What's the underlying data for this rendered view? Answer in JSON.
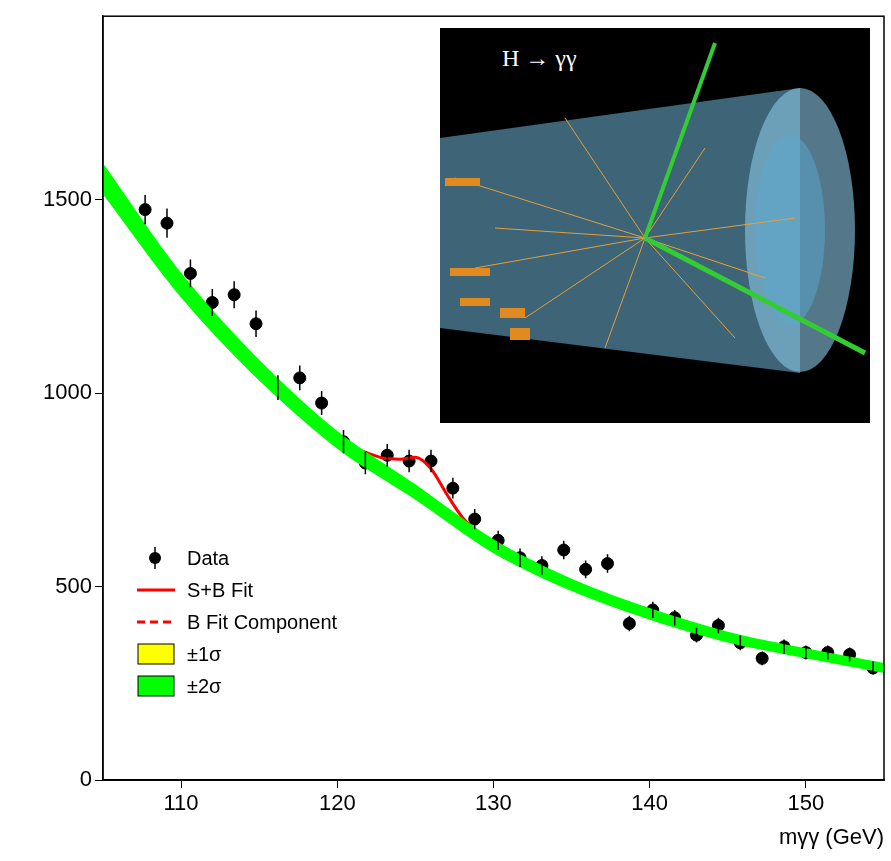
{
  "chart_data": {
    "type": "scatter",
    "x_label": "mγγ (GeV)",
    "annotation": "H → γγ",
    "xlim": [
      105,
      155
    ],
    "ylim": [
      0,
      1975
    ],
    "xticks": [
      110,
      120,
      130,
      140,
      150
    ],
    "yticks": [
      0,
      500,
      1000,
      1500
    ],
    "grid": false,
    "legend": "lower left",
    "series": [
      {
        "name": "Data",
        "type": "scatter",
        "marker": "circle",
        "color": "#000000",
        "x": [
          107.7,
          109.1,
          110.6,
          112.0,
          113.4,
          114.8,
          116.2,
          117.6,
          119.0,
          120.4,
          121.8,
          123.2,
          124.6,
          126.0,
          127.4,
          128.8,
          130.3,
          131.7,
          133.1,
          134.5,
          135.9,
          137.3,
          138.7,
          140.2,
          141.6,
          143.0,
          144.4,
          145.8,
          147.2,
          148.6,
          150.0,
          151.4,
          152.8,
          154.3
        ],
        "values": [
          1475,
          1440,
          1310,
          1235,
          1255,
          1180,
          1015,
          1040,
          975,
          875,
          820,
          840,
          825,
          825,
          755,
          675,
          620,
          575,
          555,
          595,
          545,
          560,
          405,
          440,
          420,
          375,
          400,
          355,
          315,
          345,
          330,
          330,
          325,
          290
        ],
        "errors": [
          38,
          38,
          36,
          35,
          35,
          34,
          32,
          32,
          31,
          30,
          29,
          29,
          29,
          29,
          27,
          26,
          25,
          24,
          24,
          24,
          23,
          24,
          20,
          21,
          20,
          19,
          20,
          19,
          18,
          19,
          18,
          18,
          18,
          17
        ]
      },
      {
        "name": "S+B Fit",
        "type": "line",
        "line_style": "solid",
        "color": "#ff0000",
        "x": [
          105,
          107.5,
          110,
          112.5,
          115,
          117.5,
          120,
          121,
          122,
          123,
          124,
          125,
          126,
          127,
          128,
          129,
          130,
          132.5,
          135,
          137.5,
          140,
          142.5,
          145,
          147.5,
          150,
          152.5,
          155
        ],
        "values": [
          1555,
          1410,
          1280,
          1165,
          1060,
          965,
          885,
          860,
          845,
          832,
          830,
          835,
          805,
          740,
          680,
          640,
          605,
          550,
          505,
          465,
          430,
          398,
          370,
          348,
          328,
          308,
          290
        ]
      },
      {
        "name": "B Fit Component",
        "type": "line",
        "line_style": "dashed",
        "color": "#ff0000",
        "x": [
          105,
          107.5,
          110,
          112.5,
          115,
          117.5,
          120,
          122.5,
          125,
          127.5,
          130,
          132.5,
          135,
          137.5,
          140,
          142.5,
          145,
          147.5,
          150,
          152.5,
          155
        ],
        "values": [
          1555,
          1410,
          1280,
          1165,
          1060,
          965,
          880,
          810,
          745,
          670,
          605,
          550,
          505,
          465,
          430,
          398,
          370,
          348,
          328,
          308,
          290
        ]
      },
      {
        "name": "±1σ",
        "type": "band",
        "color": "#ffff00",
        "x": [
          105,
          110,
          115,
          120,
          125,
          130,
          135,
          140,
          145,
          150,
          155
        ],
        "lower": [
          1535,
          1264,
          1046,
          868,
          735,
          596,
          497,
          422,
          363,
          321,
          283
        ],
        "upper": [
          1575,
          1296,
          1074,
          892,
          755,
          614,
          513,
          438,
          377,
          335,
          297
        ]
      },
      {
        "name": "±2σ",
        "type": "band",
        "color": "#00ff00",
        "x": [
          105,
          110,
          115,
          120,
          125,
          130,
          135,
          140,
          145,
          150,
          155
        ],
        "lower": [
          1515,
          1248,
          1033,
          857,
          725,
          587,
          489,
          415,
          356,
          315,
          277
        ],
        "upper": [
          1595,
          1312,
          1087,
          903,
          765,
          623,
          521,
          445,
          384,
          341,
          303
        ]
      }
    ]
  }
}
